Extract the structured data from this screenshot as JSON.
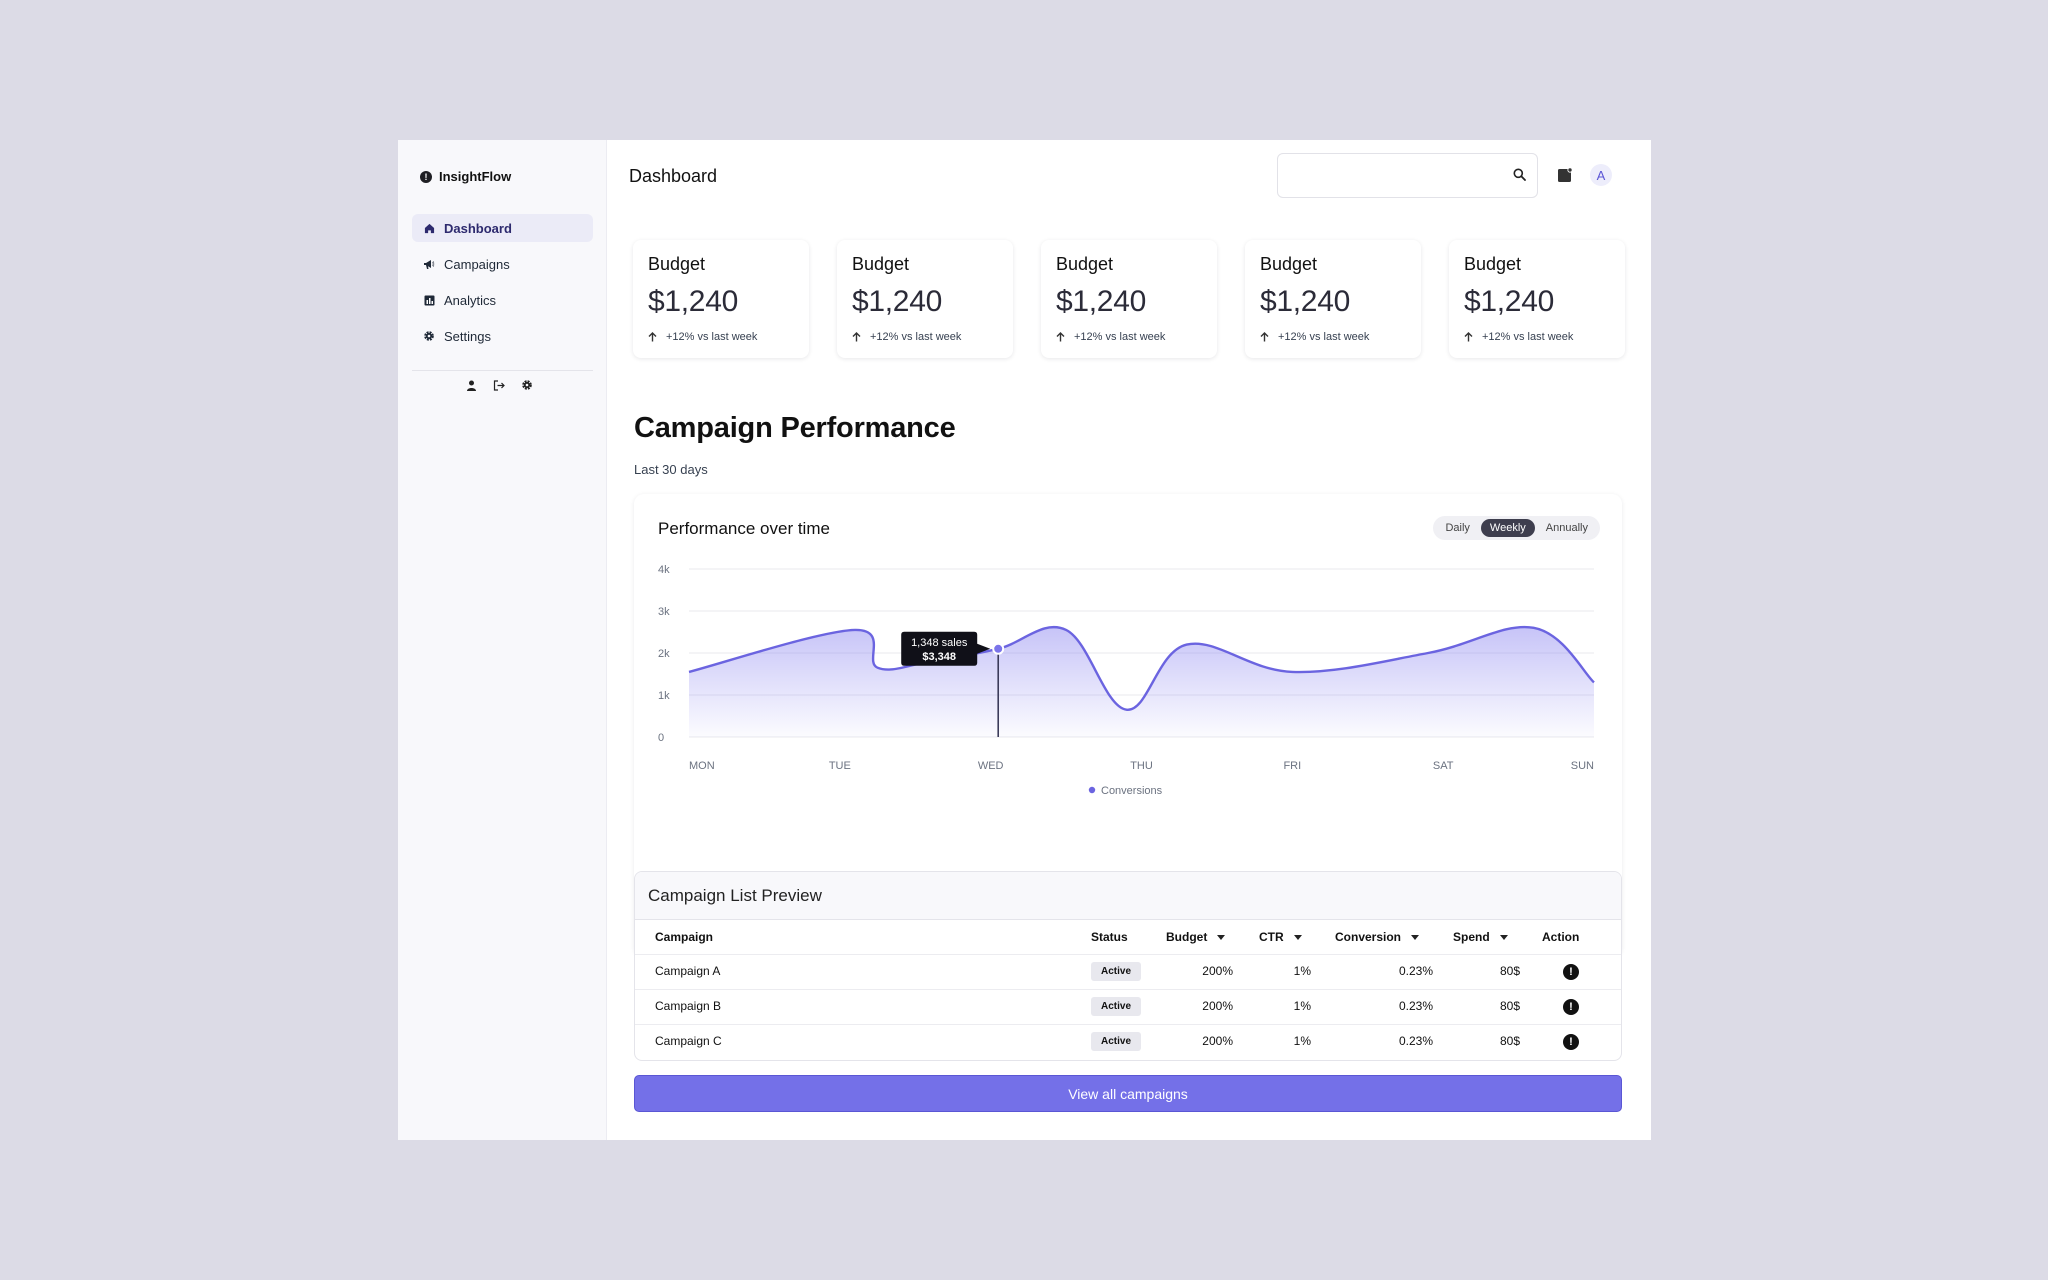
{
  "brand": {
    "name": "InsightFlow",
    "logo_icon": "logo-icon"
  },
  "sidebar": {
    "items": [
      {
        "label": "Dashboard",
        "icon": "home-icon",
        "active": true
      },
      {
        "label": "Campaigns",
        "icon": "megaphone-icon",
        "active": false
      },
      {
        "label": "Analytics",
        "icon": "analytics-icon",
        "active": false
      },
      {
        "label": "Settings",
        "icon": "gear-icon",
        "active": false
      }
    ],
    "actions": [
      "user-icon",
      "logout-icon",
      "gear-icon"
    ]
  },
  "header": {
    "title": "Dashboard",
    "search_placeholder": "",
    "avatar_initial": "A"
  },
  "kpis": [
    {
      "label": "Budget",
      "value": "$1,240",
      "change": "+12% vs last week"
    },
    {
      "label": "Budget",
      "value": "$1,240",
      "change": "+12% vs last week"
    },
    {
      "label": "Budget",
      "value": "$1,240",
      "change": "+12% vs last week"
    },
    {
      "label": "Budget",
      "value": "$1,240",
      "change": "+12% vs last week"
    },
    {
      "label": "Budget",
      "value": "$1,240",
      "change": "+12% vs last week"
    }
  ],
  "performance": {
    "title": "Campaign Performance",
    "subtitle": "Last 30 days",
    "chart_title": "Performance over time",
    "ranges": [
      "Daily",
      "Weekly",
      "Annually"
    ],
    "selected_range": "Weekly",
    "tooltip": {
      "line1": "1,348 sales",
      "line2": "$3,348"
    }
  },
  "chart_data": {
    "type": "area",
    "x": [
      "MON",
      "TUE",
      "WED",
      "THU",
      "FRI",
      "SAT",
      "SUN"
    ],
    "ylim": [
      0,
      4000
    ],
    "yticks": [
      "0",
      "1k",
      "2k",
      "3k",
      "4k"
    ],
    "series": [
      {
        "name": "Conversions",
        "color": "#6b64e0",
        "points": [
          {
            "x": 0,
            "y": 1550
          },
          {
            "x": 1.1,
            "y": 2550
          },
          {
            "x": 1.25,
            "y": 1650
          },
          {
            "x": 1.6,
            "y": 1800
          },
          {
            "x": 2.05,
            "y": 2100
          },
          {
            "x": 2.5,
            "y": 2550
          },
          {
            "x": 2.9,
            "y": 650
          },
          {
            "x": 3.3,
            "y": 2200
          },
          {
            "x": 4.0,
            "y": 1550
          },
          {
            "x": 4.9,
            "y": 2000
          },
          {
            "x": 5.6,
            "y": 2600
          },
          {
            "x": 6.0,
            "y": 1300
          }
        ]
      }
    ],
    "highlight": {
      "x": 2.05,
      "y": 2100
    },
    "legend": "bottom-center"
  },
  "campaigns": {
    "title": "Campaign List Preview",
    "columns": [
      "Campaign",
      "Status",
      "Budget",
      "CTR",
      "Conversion",
      "Spend",
      "Action"
    ],
    "rows": [
      {
        "name": "Campaign A",
        "status": "Active",
        "budget": "200%",
        "ctr": "1%",
        "conversion": "0.23%",
        "spend": "80$",
        "action_icon": "alert-icon"
      },
      {
        "name": "Campaign B",
        "status": "Active",
        "budget": "200%",
        "ctr": "1%",
        "conversion": "0.23%",
        "spend": "80$",
        "action_icon": "alert-icon"
      },
      {
        "name": "Campaign C",
        "status": "Active",
        "budget": "200%",
        "ctr": "1%",
        "conversion": "0.23%",
        "spend": "80$",
        "action_icon": "alert-icon"
      }
    ],
    "cta": "View all campaigns"
  }
}
